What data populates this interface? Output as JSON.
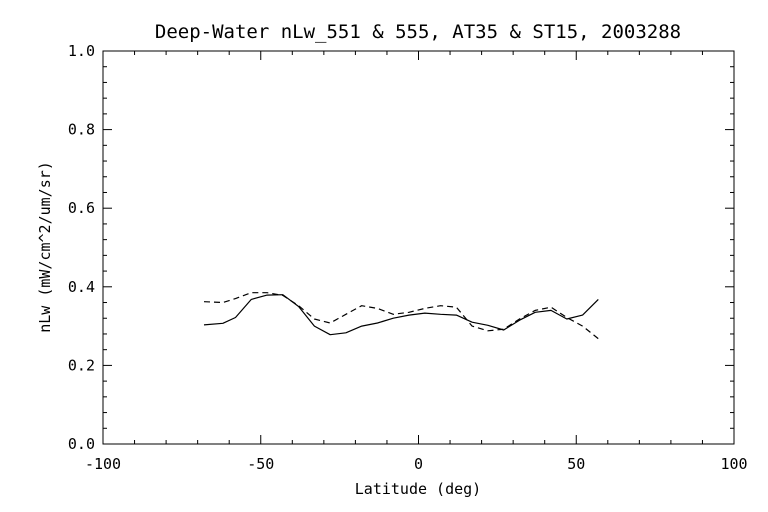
{
  "chart_data": {
    "type": "line",
    "title": "Deep-Water nLw_551 & 555, AT35 & ST15, 2003288",
    "xlabel": "Latitude (deg)",
    "ylabel": "nLw (mW/cm^2/um/sr)",
    "xlim": [
      -100,
      100
    ],
    "ylim": [
      0.0,
      1.0
    ],
    "xticks": [
      -100,
      -50,
      0,
      50,
      100
    ],
    "xtick_labels": [
      "-100",
      "-50",
      "0",
      "50",
      "100"
    ],
    "yticks": [
      0.0,
      0.2,
      0.4,
      0.6,
      0.8,
      1.0
    ],
    "ytick_labels": [
      "0.0",
      "0.2",
      "0.4",
      "0.6",
      "0.8",
      "1.0"
    ],
    "grid": false,
    "series": [
      {
        "style": "solid",
        "color": "#000000",
        "x": [
          -68,
          -62,
          -58,
          -53,
          -48,
          -43,
          -38,
          -33,
          -28,
          -23,
          -18,
          -13,
          -8,
          -3,
          2,
          7,
          12,
          17,
          22,
          27,
          32,
          37,
          42,
          47,
          52,
          57
        ],
        "y": [
          0.303,
          0.307,
          0.322,
          0.368,
          0.379,
          0.38,
          0.35,
          0.3,
          0.278,
          0.283,
          0.3,
          0.308,
          0.32,
          0.328,
          0.333,
          0.33,
          0.328,
          0.31,
          0.302,
          0.29,
          0.315,
          0.335,
          0.34,
          0.318,
          0.328,
          0.368
        ]
      },
      {
        "style": "dashed",
        "color": "#000000",
        "x": [
          -68,
          -62,
          -58,
          -53,
          -48,
          -43,
          -38,
          -33,
          -28,
          -23,
          -18,
          -13,
          -8,
          -3,
          2,
          7,
          12,
          17,
          22,
          27,
          32,
          37,
          42,
          47,
          52,
          57
        ],
        "y": [
          0.362,
          0.36,
          0.37,
          0.385,
          0.385,
          0.378,
          0.352,
          0.318,
          0.308,
          0.33,
          0.352,
          0.345,
          0.33,
          0.335,
          0.345,
          0.352,
          0.348,
          0.3,
          0.288,
          0.292,
          0.318,
          0.34,
          0.348,
          0.322,
          0.3,
          0.268
        ]
      }
    ]
  }
}
